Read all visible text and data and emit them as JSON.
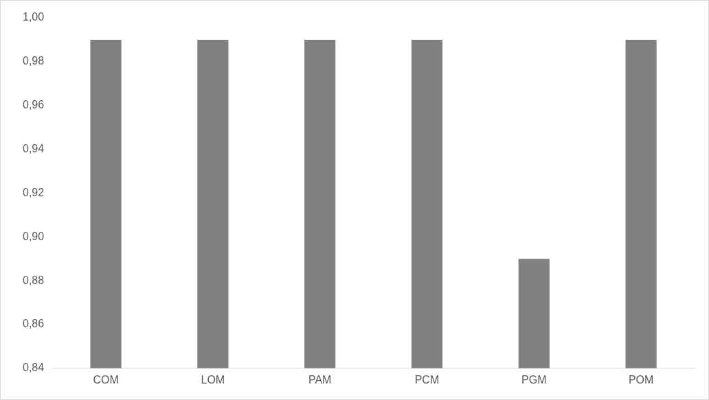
{
  "chart_data": {
    "type": "bar",
    "categories": [
      "COM",
      "LOM",
      "PAM",
      "PCM",
      "PGM",
      "POM"
    ],
    "values": [
      0.99,
      0.99,
      0.99,
      0.99,
      0.89,
      0.99
    ],
    "color": "#808080",
    "ylim": [
      0.84,
      1.0
    ],
    "yticks": [
      {
        "value": 0.84,
        "label": "0,84"
      },
      {
        "value": 0.86,
        "label": "0,86"
      },
      {
        "value": 0.88,
        "label": "0,88"
      },
      {
        "value": 0.9,
        "label": "0,90"
      },
      {
        "value": 0.92,
        "label": "0,92"
      },
      {
        "value": 0.94,
        "label": "0,94"
      },
      {
        "value": 0.96,
        "label": "0,96"
      },
      {
        "value": 0.98,
        "label": "0,98"
      },
      {
        "value": 1.0,
        "label": "1,00"
      }
    ],
    "grid": false,
    "legend": false
  }
}
